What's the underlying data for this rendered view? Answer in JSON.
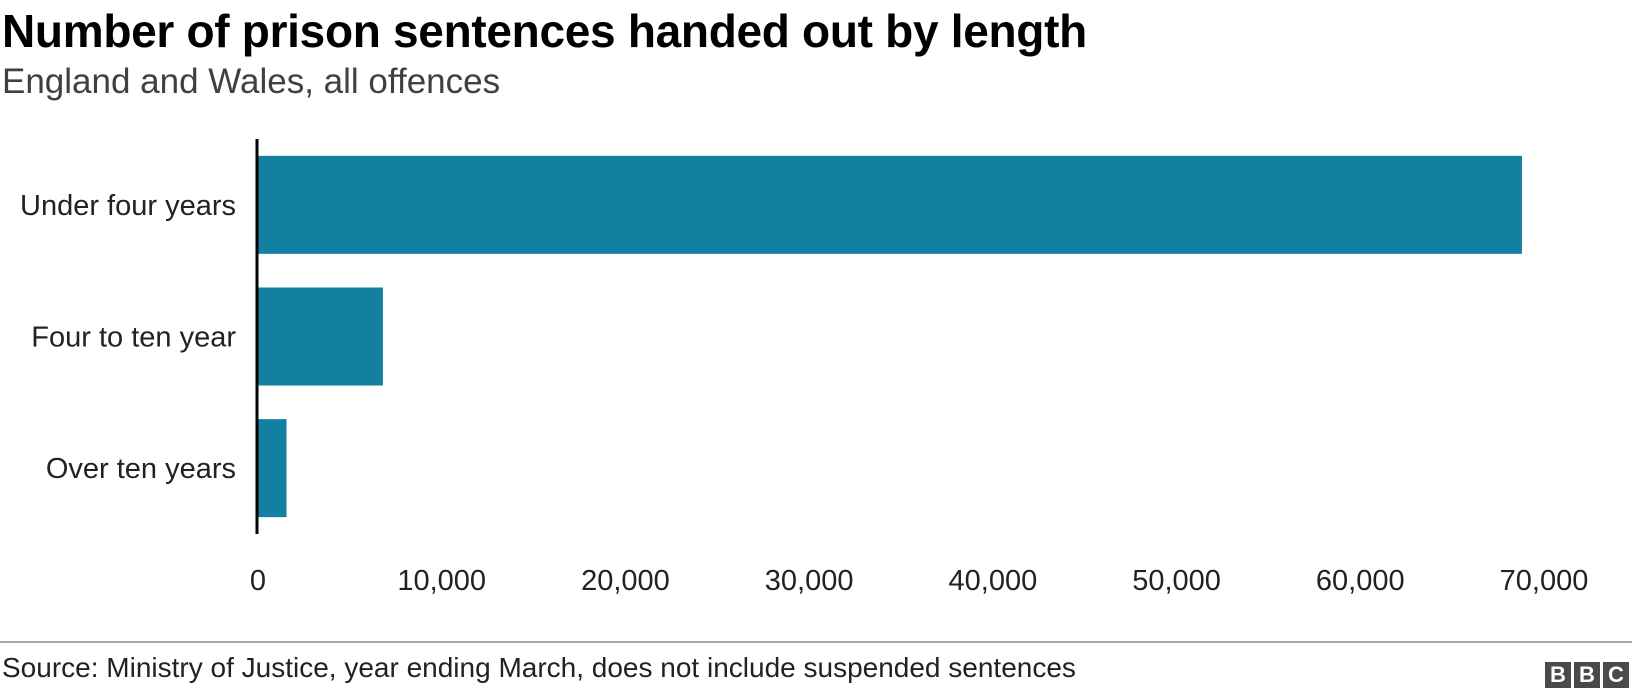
{
  "header": {
    "title": "Number of prison sentences handed out by length",
    "subtitle": "England and Wales, all offences"
  },
  "footer": {
    "source": "Source: Ministry of Justice, year ending March, does not include suspended sentences",
    "logo_letters": [
      "B",
      "B",
      "C"
    ]
  },
  "chart_data": {
    "type": "bar",
    "orientation": "horizontal",
    "title": "Number of prison sentences handed out by length",
    "subtitle": "England and Wales, all offences",
    "categories": [
      "Under four years",
      "Four to ten year",
      "Over ten years"
    ],
    "values": [
      68800,
      6800,
      1550
    ],
    "xlim": [
      0,
      70000
    ],
    "x_ticks": [
      0,
      10000,
      20000,
      30000,
      40000,
      50000,
      60000,
      70000
    ],
    "x_tick_labels": [
      "0",
      "10,000",
      "20,000",
      "30,000",
      "40,000",
      "50,000",
      "60,000",
      "70,000"
    ],
    "grid": false,
    "bar_color": "#1380a1",
    "axis_color": "#000000"
  }
}
